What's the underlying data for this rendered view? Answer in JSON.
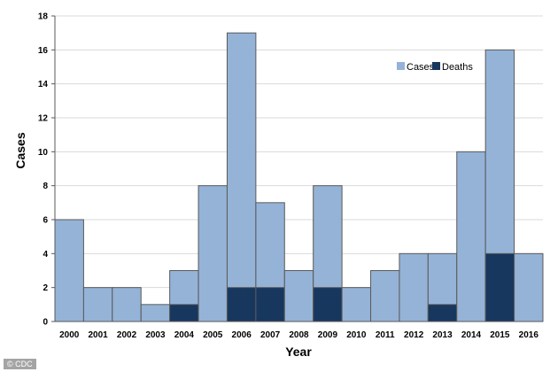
{
  "chart_data": {
    "type": "bar",
    "categories": [
      "2000",
      "2001",
      "2002",
      "2003",
      "2004",
      "2005",
      "2006",
      "2007",
      "2008",
      "2009",
      "2010",
      "2011",
      "2012",
      "2013",
      "2014",
      "2015",
      "2016"
    ],
    "series": [
      {
        "name": "Cases",
        "values": [
          6,
          2,
          2,
          1,
          3,
          8,
          17,
          7,
          3,
          8,
          2,
          3,
          4,
          4,
          10,
          16,
          4
        ],
        "color": "#95B3D7"
      },
      {
        "name": "Deaths",
        "values": [
          0,
          0,
          0,
          0,
          1,
          0,
          2,
          2,
          0,
          2,
          0,
          0,
          0,
          1,
          0,
          4,
          0
        ],
        "color": "#17375E"
      }
    ],
    "xlabel": "Year",
    "ylabel": "Cases",
    "ylim": [
      0,
      18
    ],
    "yticks": [
      0,
      2,
      4,
      6,
      8,
      10,
      12,
      14,
      16,
      18
    ],
    "grid": true,
    "legend_position": "top-right",
    "bar_edge_color": "#595959"
  },
  "credit": "© CDC"
}
